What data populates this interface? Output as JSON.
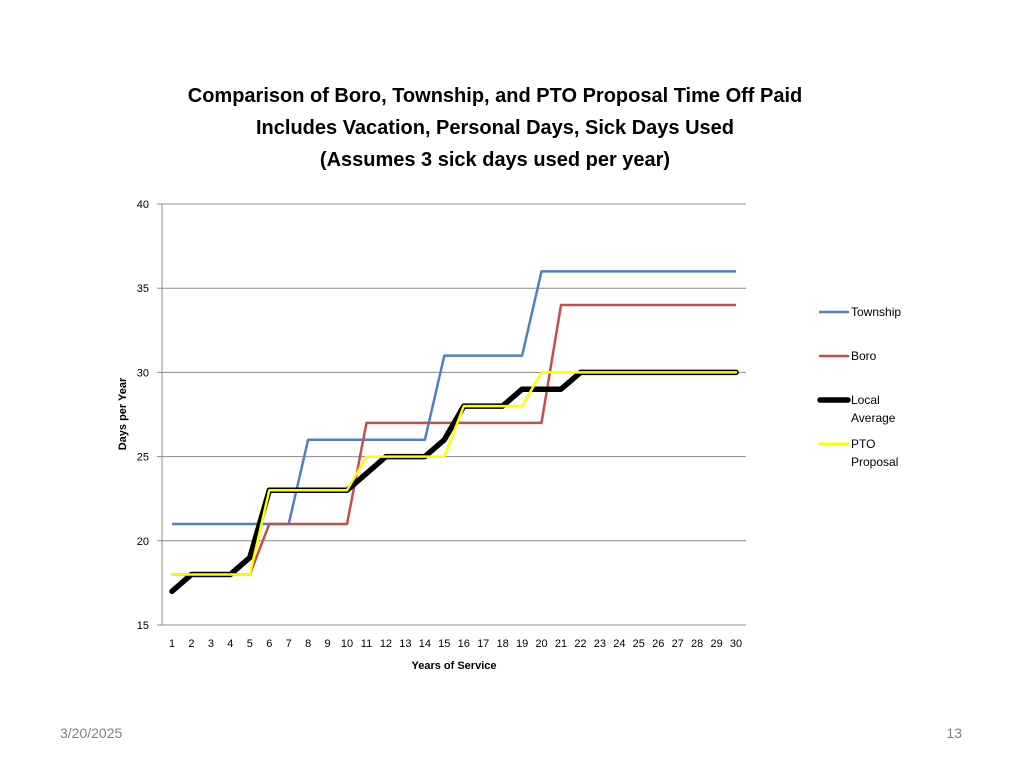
{
  "chart_data": {
    "type": "line",
    "title_lines": [
      "Comparison of Boro, Township, and PTO Proposal Time Off Paid",
      "Includes Vacation, Personal Days, Sick Days Used",
      "(Assumes 3 sick days used per year)"
    ],
    "xlabel": "Years of Service",
    "ylabel": "Days per Year",
    "ylim": [
      15,
      40
    ],
    "yticks": [
      15,
      20,
      25,
      30,
      35,
      40
    ],
    "grid": true,
    "legend_position": "right",
    "x": [
      1,
      2,
      3,
      4,
      5,
      6,
      7,
      8,
      9,
      10,
      11,
      12,
      13,
      14,
      15,
      16,
      17,
      18,
      19,
      20,
      21,
      22,
      23,
      24,
      25,
      26,
      27,
      28,
      29,
      30
    ],
    "series": [
      {
        "name": "Township",
        "color": "#4F81BD",
        "values": [
          21,
          21,
          21,
          21,
          21,
          21,
          21,
          26,
          26,
          26,
          26,
          26,
          26,
          26,
          31,
          31,
          31,
          31,
          31,
          36,
          36,
          36,
          36,
          36,
          36,
          36,
          36,
          36,
          36,
          36
        ]
      },
      {
        "name": "Boro",
        "color": "#C0504D",
        "values": [
          18,
          18,
          18,
          18,
          18,
          21,
          21,
          21,
          21,
          21,
          27,
          27,
          27,
          27,
          27,
          27,
          27,
          27,
          27,
          27,
          34,
          34,
          34,
          34,
          34,
          34,
          34,
          34,
          34,
          34
        ]
      },
      {
        "name": "Local Average",
        "color": "#000000",
        "values": [
          17,
          18,
          18,
          18,
          19,
          23,
          23,
          23,
          23,
          23,
          24,
          25,
          25,
          25,
          26,
          28,
          28,
          28,
          29,
          29,
          29,
          30,
          30,
          30,
          30,
          30,
          30,
          30,
          30,
          30
        ]
      },
      {
        "name": "PTO Proposal",
        "color": "#FFFF00",
        "values": [
          18,
          18,
          18,
          18,
          18,
          23,
          23,
          23,
          23,
          23,
          25,
          25,
          25,
          25,
          25,
          28,
          28,
          28,
          28,
          30,
          30,
          30,
          30,
          30,
          30,
          30,
          30,
          30,
          30,
          30
        ]
      }
    ],
    "legend_lines": [
      [
        "Township"
      ],
      [
        "Boro"
      ],
      [
        "Local",
        "Average"
      ],
      [
        "PTO",
        "Proposal"
      ]
    ]
  },
  "footer": {
    "date": "3/20/2025",
    "page": "13"
  }
}
